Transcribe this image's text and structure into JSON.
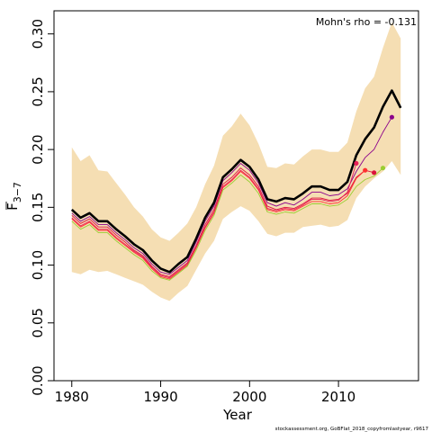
{
  "chart_data": {
    "type": "line",
    "xlabel": "Year",
    "ylabel_main": "F",
    "ylabel_sub": "3−7",
    "ylim": [
      0,
      0.32
    ],
    "xlim": [
      1978,
      2019
    ],
    "xticks": [
      {
        "value": 1980,
        "label": "1980"
      },
      {
        "value": 1990,
        "label": "1990"
      },
      {
        "value": 2000,
        "label": "2000"
      },
      {
        "value": 2010,
        "label": "2010"
      }
    ],
    "yticks": [
      {
        "value": 0.0,
        "label": "0.00"
      },
      {
        "value": 0.05,
        "label": "0.05"
      },
      {
        "value": 0.1,
        "label": "0.10"
      },
      {
        "value": 0.15,
        "label": "0.15"
      },
      {
        "value": 0.2,
        "label": "0.20"
      },
      {
        "value": 0.25,
        "label": "0.25"
      },
      {
        "value": 0.3,
        "label": "0.30"
      }
    ],
    "annotation": "Mohn's rho = -0.131",
    "footer": "stockassessment.org, GoBFlat_2018_copyfromlastyear, r9617",
    "band": {
      "color": "#f5deb3",
      "x": [
        1980,
        1981,
        1982,
        1983,
        1984,
        1985,
        1986,
        1987,
        1988,
        1989,
        1990,
        1991,
        1992,
        1993,
        1994,
        1995,
        1996,
        1997,
        1998,
        1999,
        2000,
        2001,
        2002,
        2003,
        2004,
        2005,
        2006,
        2007,
        2008,
        2009,
        2010,
        2011,
        2012,
        2013,
        2014,
        2015,
        2016,
        2017
      ],
      "upper": [
        0.202,
        0.19,
        0.195,
        0.182,
        0.181,
        0.171,
        0.161,
        0.15,
        0.142,
        0.131,
        0.124,
        0.121,
        0.128,
        0.136,
        0.15,
        0.17,
        0.186,
        0.212,
        0.22,
        0.231,
        0.221,
        0.205,
        0.185,
        0.184,
        0.188,
        0.187,
        0.194,
        0.2,
        0.2,
        0.198,
        0.198,
        0.206,
        0.233,
        0.253,
        0.263,
        0.288,
        0.31,
        0.296
      ],
      "lower": [
        0.094,
        0.092,
        0.096,
        0.094,
        0.095,
        0.092,
        0.089,
        0.086,
        0.083,
        0.077,
        0.072,
        0.069,
        0.076,
        0.082,
        0.096,
        0.11,
        0.121,
        0.14,
        0.146,
        0.151,
        0.147,
        0.138,
        0.127,
        0.125,
        0.128,
        0.128,
        0.133,
        0.134,
        0.135,
        0.133,
        0.134,
        0.139,
        0.158,
        0.168,
        0.175,
        0.181,
        0.19,
        0.178
      ]
    },
    "series": [
      {
        "color": "#000000",
        "width": 2.6,
        "end_marker": false,
        "x": [
          1980,
          1981,
          1982,
          1983,
          1984,
          1985,
          1986,
          1987,
          1988,
          1989,
          1990,
          1991,
          1992,
          1993,
          1994,
          1995,
          1996,
          1997,
          1998,
          1999,
          2000,
          2001,
          2002,
          2003,
          2004,
          2005,
          2006,
          2007,
          2008,
          2009,
          2010,
          2011,
          2012,
          2013,
          2014,
          2015,
          2016,
          2017
        ],
        "values": [
          0.148,
          0.141,
          0.145,
          0.138,
          0.138,
          0.131,
          0.125,
          0.118,
          0.113,
          0.104,
          0.097,
          0.094,
          0.101,
          0.107,
          0.123,
          0.141,
          0.154,
          0.176,
          0.183,
          0.191,
          0.185,
          0.174,
          0.157,
          0.155,
          0.158,
          0.157,
          0.162,
          0.168,
          0.168,
          0.165,
          0.165,
          0.172,
          0.195,
          0.209,
          0.219,
          0.237,
          0.251,
          0.236
        ]
      },
      {
        "color": "#8b008b",
        "width": 0.9,
        "end_marker": true,
        "x": [
          1980,
          1981,
          1982,
          1983,
          1984,
          1985,
          1986,
          1987,
          1988,
          1989,
          1990,
          1991,
          1992,
          1993,
          1994,
          1995,
          1996,
          1997,
          1998,
          1999,
          2000,
          2001,
          2002,
          2003,
          2004,
          2005,
          2006,
          2007,
          2008,
          2009,
          2010,
          2011,
          2012,
          2013,
          2014,
          2015,
          2016
        ],
        "values": [
          0.145,
          0.138,
          0.142,
          0.135,
          0.135,
          0.128,
          0.122,
          0.115,
          0.11,
          0.101,
          0.094,
          0.092,
          0.098,
          0.104,
          0.12,
          0.138,
          0.151,
          0.173,
          0.18,
          0.188,
          0.182,
          0.171,
          0.154,
          0.151,
          0.154,
          0.152,
          0.157,
          0.163,
          0.163,
          0.16,
          0.161,
          0.166,
          0.181,
          0.193,
          0.2,
          0.215,
          0.228
        ]
      },
      {
        "color": "#dc143c",
        "width": 0.9,
        "end_marker": true,
        "x": [
          1980,
          1981,
          1982,
          1983,
          1984,
          1985,
          1986,
          1987,
          1988,
          1989,
          1990,
          1991,
          1992,
          1993,
          1994,
          1995,
          1996,
          1997,
          1998,
          1999,
          2000,
          2001,
          2002,
          2003,
          2004,
          2005,
          2006,
          2007,
          2008,
          2009,
          2010,
          2011,
          2012,
          2013,
          2014
        ],
        "values": [
          0.143,
          0.136,
          0.14,
          0.133,
          0.133,
          0.126,
          0.12,
          0.113,
          0.108,
          0.099,
          0.092,
          0.09,
          0.096,
          0.102,
          0.117,
          0.135,
          0.148,
          0.17,
          0.176,
          0.184,
          0.178,
          0.168,
          0.151,
          0.148,
          0.15,
          0.149,
          0.153,
          0.158,
          0.158,
          0.156,
          0.157,
          0.162,
          0.176,
          0.182,
          0.18
        ]
      },
      {
        "color": "#ff3030",
        "width": 0.9,
        "end_marker": true,
        "x": [
          1980,
          1981,
          1982,
          1983,
          1984,
          1985,
          1986,
          1987,
          1988,
          1989,
          1990,
          1991,
          1992,
          1993,
          1994,
          1995,
          1996,
          1997,
          1998,
          1999,
          2000,
          2001,
          2002,
          2003,
          2004,
          2005,
          2006,
          2007,
          2008,
          2009,
          2010,
          2011,
          2012,
          2013
        ],
        "values": [
          0.14,
          0.133,
          0.137,
          0.13,
          0.13,
          0.123,
          0.117,
          0.111,
          0.106,
          0.097,
          0.09,
          0.088,
          0.094,
          0.1,
          0.115,
          0.132,
          0.145,
          0.167,
          0.173,
          0.181,
          0.175,
          0.165,
          0.148,
          0.146,
          0.148,
          0.147,
          0.151,
          0.155,
          0.155,
          0.153,
          0.154,
          0.16,
          0.175,
          0.182
        ]
      },
      {
        "color": "#e8205a",
        "width": 0.9,
        "end_marker": true,
        "x": [
          1980,
          1981,
          1982,
          1983,
          1984,
          1985,
          1986,
          1987,
          1988,
          1989,
          1990,
          1991,
          1992,
          1993,
          1994,
          1995,
          1996,
          1997,
          1998,
          1999,
          2000,
          2001,
          2002,
          2003,
          2004,
          2005,
          2006,
          2007,
          2008,
          2009,
          2010,
          2011,
          2012
        ],
        "values": [
          0.141,
          0.134,
          0.138,
          0.131,
          0.131,
          0.124,
          0.118,
          0.112,
          0.107,
          0.098,
          0.091,
          0.089,
          0.095,
          0.101,
          0.116,
          0.133,
          0.146,
          0.168,
          0.174,
          0.182,
          0.176,
          0.166,
          0.149,
          0.147,
          0.149,
          0.148,
          0.152,
          0.157,
          0.157,
          0.155,
          0.156,
          0.163,
          0.188
        ]
      },
      {
        "color": "#9acd32",
        "width": 0.9,
        "end_marker": true,
        "x": [
          1980,
          1981,
          1982,
          1983,
          1984,
          1985,
          1986,
          1987,
          1988,
          1989,
          1990,
          1991,
          1992,
          1993,
          1994,
          1995,
          1996,
          1997,
          1998,
          1999,
          2000,
          2001,
          2002,
          2003,
          2004,
          2005,
          2006,
          2007,
          2008,
          2009,
          2010,
          2011,
          2012,
          2013,
          2014,
          2015
        ],
        "values": [
          0.138,
          0.131,
          0.135,
          0.128,
          0.128,
          0.121,
          0.115,
          0.109,
          0.104,
          0.095,
          0.089,
          0.087,
          0.093,
          0.099,
          0.113,
          0.13,
          0.143,
          0.165,
          0.171,
          0.178,
          0.172,
          0.162,
          0.146,
          0.144,
          0.146,
          0.145,
          0.149,
          0.153,
          0.153,
          0.151,
          0.152,
          0.157,
          0.168,
          0.174,
          0.177,
          0.184
        ]
      }
    ]
  }
}
